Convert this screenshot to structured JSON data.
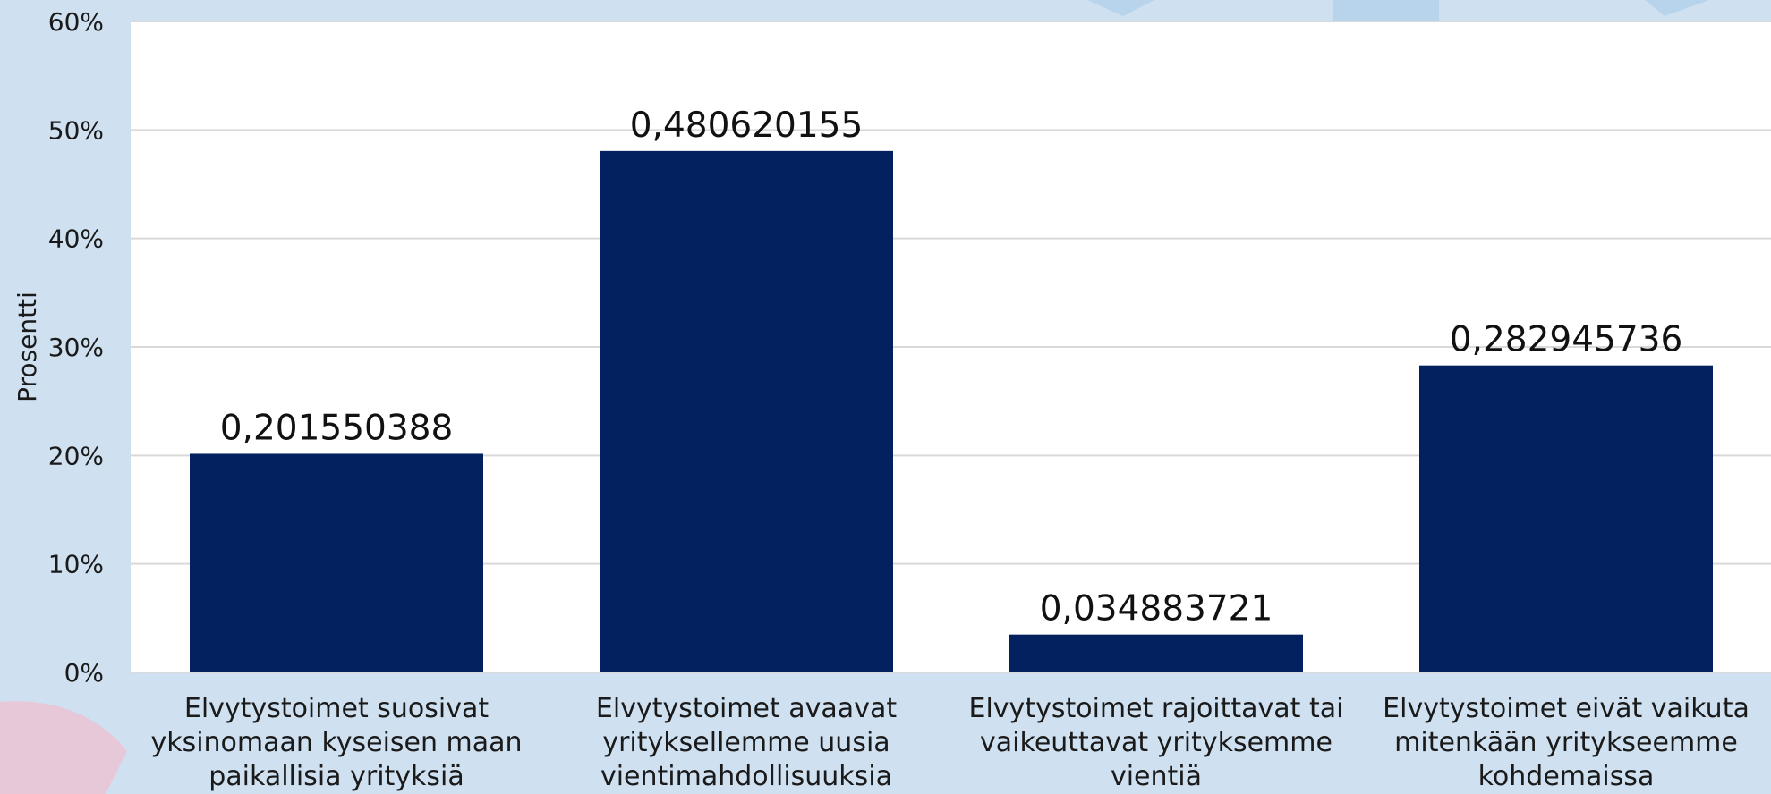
{
  "chart_data": {
    "type": "bar",
    "categories": [
      "Elvytystoimet suosivat\nyksinomaan kyseisen maan\npaikallisia yrityksiä",
      "Elvytystoimet avaavat\nyrityksellemme uusia\nvientimahdollisuuksia",
      "Elvytystoimet rajoittavat tai\nvaikeuttavat yrityksemme\nvientiä",
      "Elvytystoimet eivät vaikuta\nmitenkään yritykseemme\nkohdemaissa"
    ],
    "values": [
      0.201550388,
      0.480620155,
      0.034883721,
      0.282945736
    ],
    "data_labels": [
      "0,201550388",
      "0,480620155",
      "0,034883721",
      "0,282945736"
    ],
    "ylabel": "Prosentti",
    "ylim": [
      0,
      0.6
    ],
    "yticks": [
      "0%",
      "10%",
      "20%",
      "30%",
      "40%",
      "50%",
      "60%"
    ],
    "grid": true,
    "bar_color": "#03215e",
    "plot_background": "#ffffff",
    "page_background": "#cfe0f0",
    "gridline_color": "#d9d9d9"
  }
}
